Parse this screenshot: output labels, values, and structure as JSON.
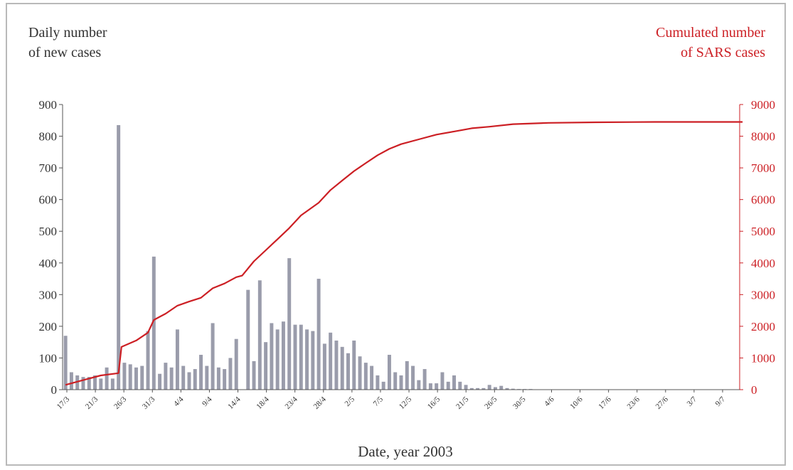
{
  "chart_data": {
    "type": "bar+line",
    "title": "",
    "xlabel": "Date, year 2003",
    "ylabel_left": "Daily number\nof new cases",
    "ylabel_right": "Cumulated number\nof SARS cases",
    "ylim_left": [
      0,
      900
    ],
    "ylim_right": [
      0,
      9000
    ],
    "yticks_left": [
      "0",
      "100",
      "200",
      "300",
      "400",
      "500",
      "600",
      "700",
      "800",
      "900"
    ],
    "yticks_right": [
      "0",
      "1000",
      "2000",
      "3000",
      "4000",
      "5000",
      "6000",
      "7000",
      "8000",
      "9000"
    ],
    "x_tick_labels": [
      "17/3",
      "21/3",
      "26/3",
      "31/3",
      "4/4",
      "9/4",
      "14/4",
      "18/4",
      "23/4",
      "28/4",
      "2/5",
      "7/5",
      "12/5",
      "16/5",
      "21/5",
      "26/5",
      "30/5",
      "4/6",
      "10/6",
      "17/6",
      "23/6",
      "27/6",
      "3/7",
      "9/7"
    ],
    "colors": {
      "bars": "#9a9cab",
      "line": "#cc1f24",
      "left_axis": "#333333",
      "right_axis": "#cc1f24"
    },
    "series": [
      {
        "name": "",
        "kind": "bar",
        "axis": "left",
        "values": [
          170,
          55,
          45,
          40,
          40,
          45,
          35,
          70,
          35,
          835,
          85,
          80,
          70,
          75,
          185,
          420,
          50,
          85,
          70,
          190,
          75,
          55,
          65,
          110,
          75,
          210,
          70,
          65,
          100,
          160,
          0,
          315,
          90,
          345,
          150,
          210,
          190,
          215,
          415,
          205,
          205,
          190,
          185,
          350,
          145,
          180,
          155,
          135,
          115,
          155,
          105,
          85,
          75,
          45,
          25,
          110,
          55,
          45,
          90,
          75,
          30,
          65,
          20,
          20,
          55,
          25,
          45,
          25,
          15,
          5,
          5,
          5,
          15,
          8,
          12,
          5,
          3,
          2,
          2,
          2,
          1,
          1,
          1,
          1,
          1,
          1,
          1,
          1,
          0,
          0,
          0,
          0,
          0,
          0,
          0,
          0,
          0,
          0,
          0,
          0,
          0,
          0,
          0,
          0,
          0,
          0,
          0,
          0,
          0,
          0,
          0,
          0,
          0,
          0,
          0
        ]
      },
      {
        "name": "",
        "kind": "line",
        "axis": "right",
        "x_index": [
          0,
          3,
          6,
          9,
          9.5,
          12,
          14,
          15,
          16,
          17,
          19,
          21,
          23,
          25,
          27,
          29,
          30,
          32,
          34,
          36,
          38,
          40,
          43,
          45,
          47,
          49,
          51,
          53,
          55,
          57,
          60,
          63,
          66,
          69,
          72,
          76,
          82,
          90,
          100,
          115
        ],
        "values": [
          150,
          300,
          450,
          520,
          1350,
          1550,
          1800,
          2200,
          2300,
          2400,
          2650,
          2780,
          2900,
          3200,
          3350,
          3550,
          3600,
          4050,
          4400,
          4750,
          5100,
          5500,
          5900,
          6300,
          6600,
          6900,
          7150,
          7400,
          7600,
          7750,
          7900,
          8050,
          8150,
          8250,
          8300,
          8380,
          8420,
          8440,
          8450,
          8450
        ]
      }
    ]
  }
}
